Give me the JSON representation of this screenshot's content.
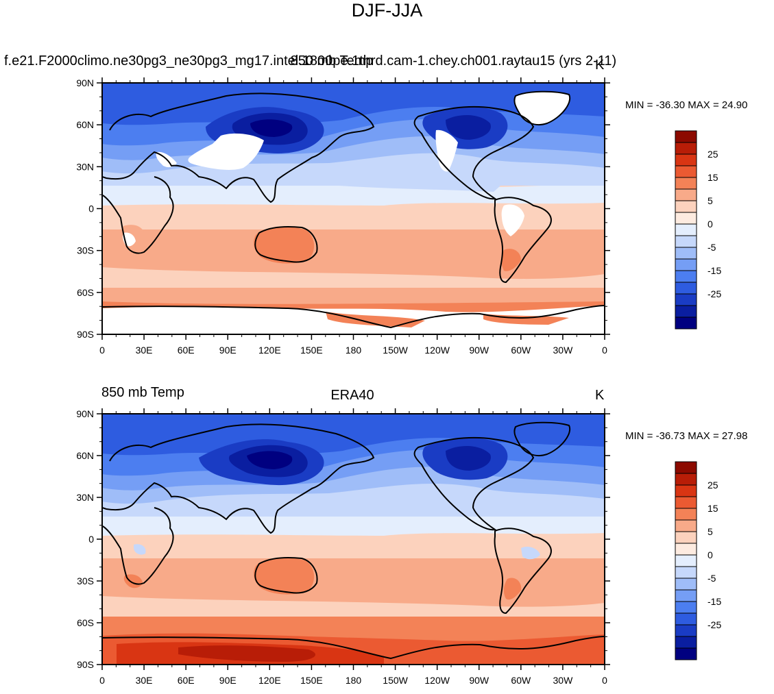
{
  "figure": {
    "title": "DJF-JJA",
    "palette": [
      "#000080",
      "#0a1ea0",
      "#1a3cc4",
      "#2e5ce0",
      "#4c7ef0",
      "#759ef5",
      "#9fbdf8",
      "#c6d8fb",
      "#e4eefd",
      "#fdebe0",
      "#fcd2bd",
      "#f8aa89",
      "#f38257",
      "#eb5a32",
      "#d93513",
      "#b81d07",
      "#8c0a00"
    ],
    "colorbar_labels": [
      "25",
      "15",
      "5",
      "0",
      "-5",
      "-15",
      "-25"
    ],
    "lat_labels": [
      "90N",
      "60N",
      "30N",
      "0",
      "30S",
      "60S",
      "90S"
    ],
    "lon_labels": [
      "0",
      "30E",
      "60E",
      "90E",
      "120E",
      "150E",
      "180",
      "150W",
      "120W",
      "90W",
      "60W",
      "30W",
      "0"
    ]
  },
  "panels": [
    {
      "left_label": "f.e21.F2000climo.ne30pg3_ne30pg3_mg17.intel.1800pe.1thrd.cam-1.chey.ch001.raytau15 (yrs 2-11)",
      "center_label": "850 mb Temp",
      "right_label": "K",
      "minmax": "MIN = -36.30 MAX =  24.90",
      "missing_mask": true
    },
    {
      "left_label": "850 mb Temp",
      "center_label": "ERA40",
      "right_label": "K",
      "minmax": "MIN = -36.73 MAX =  27.98",
      "missing_mask": false
    }
  ]
}
